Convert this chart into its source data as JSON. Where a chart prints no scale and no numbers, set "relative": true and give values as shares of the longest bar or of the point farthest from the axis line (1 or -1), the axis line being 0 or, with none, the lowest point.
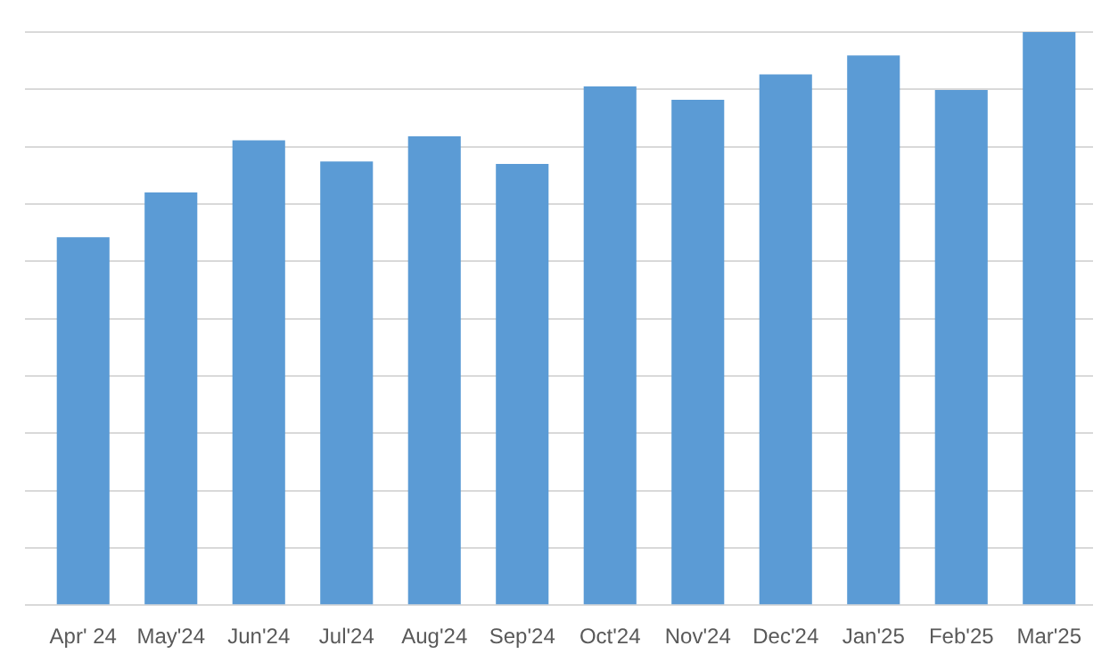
{
  "chart_data": {
    "type": "bar",
    "relative": true,
    "grid": "y",
    "categories": [
      "Apr' 24",
      "May'24",
      "Jun'24",
      "Jul'24",
      "Aug'24",
      "Sep'24",
      "Oct'24",
      "Nov'24",
      "Dec'24",
      "Jan'25",
      "Feb'25",
      "Mar'25"
    ],
    "values": [
      0.642,
      0.72,
      0.811,
      0.774,
      0.818,
      0.77,
      0.905,
      0.882,
      0.926,
      0.959,
      0.899,
      1
    ],
    "color": "#5b9bd5"
  }
}
